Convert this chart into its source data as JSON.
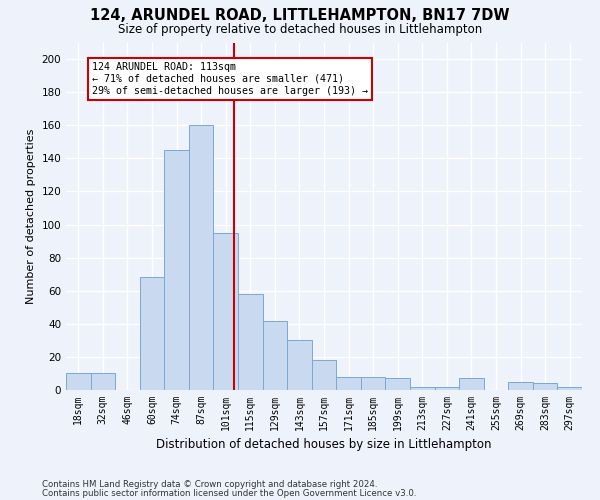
{
  "title": "124, ARUNDEL ROAD, LITTLEHAMPTON, BN17 7DW",
  "subtitle": "Size of property relative to detached houses in Littlehampton",
  "xlabel": "Distribution of detached houses by size in Littlehampton",
  "ylabel": "Number of detached properties",
  "bin_labels": [
    "18sqm",
    "32sqm",
    "46sqm",
    "60sqm",
    "74sqm",
    "87sqm",
    "101sqm",
    "115sqm",
    "129sqm",
    "143sqm",
    "157sqm",
    "171sqm",
    "185sqm",
    "199sqm",
    "213sqm",
    "227sqm",
    "241sqm",
    "255sqm",
    "269sqm",
    "283sqm",
    "297sqm"
  ],
  "bar_heights": [
    10,
    10,
    0,
    68,
    145,
    160,
    95,
    58,
    42,
    30,
    18,
    8,
    8,
    7,
    2,
    2,
    7,
    0,
    5,
    4,
    2
  ],
  "bar_color": "#c9d9f0",
  "bar_edge_color": "#7aa8d4",
  "bar_width": 1.0,
  "property_label": "124 ARUNDEL ROAD: 113sqm",
  "annotation_line1": "← 71% of detached houses are smaller (471)",
  "annotation_line2": "29% of semi-detached houses are larger (193) →",
  "vline_color": "#cc0000",
  "annotation_box_color": "#ffffff",
  "annotation_box_edge": "#cc0000",
  "ylim": [
    0,
    210
  ],
  "yticks": [
    0,
    20,
    40,
    60,
    80,
    100,
    120,
    140,
    160,
    180,
    200
  ],
  "footer1": "Contains HM Land Registry data © Crown copyright and database right 2024.",
  "footer2": "Contains public sector information licensed under the Open Government Licence v3.0.",
  "bg_color": "#eef2fb",
  "grid_color": "#ffffff"
}
